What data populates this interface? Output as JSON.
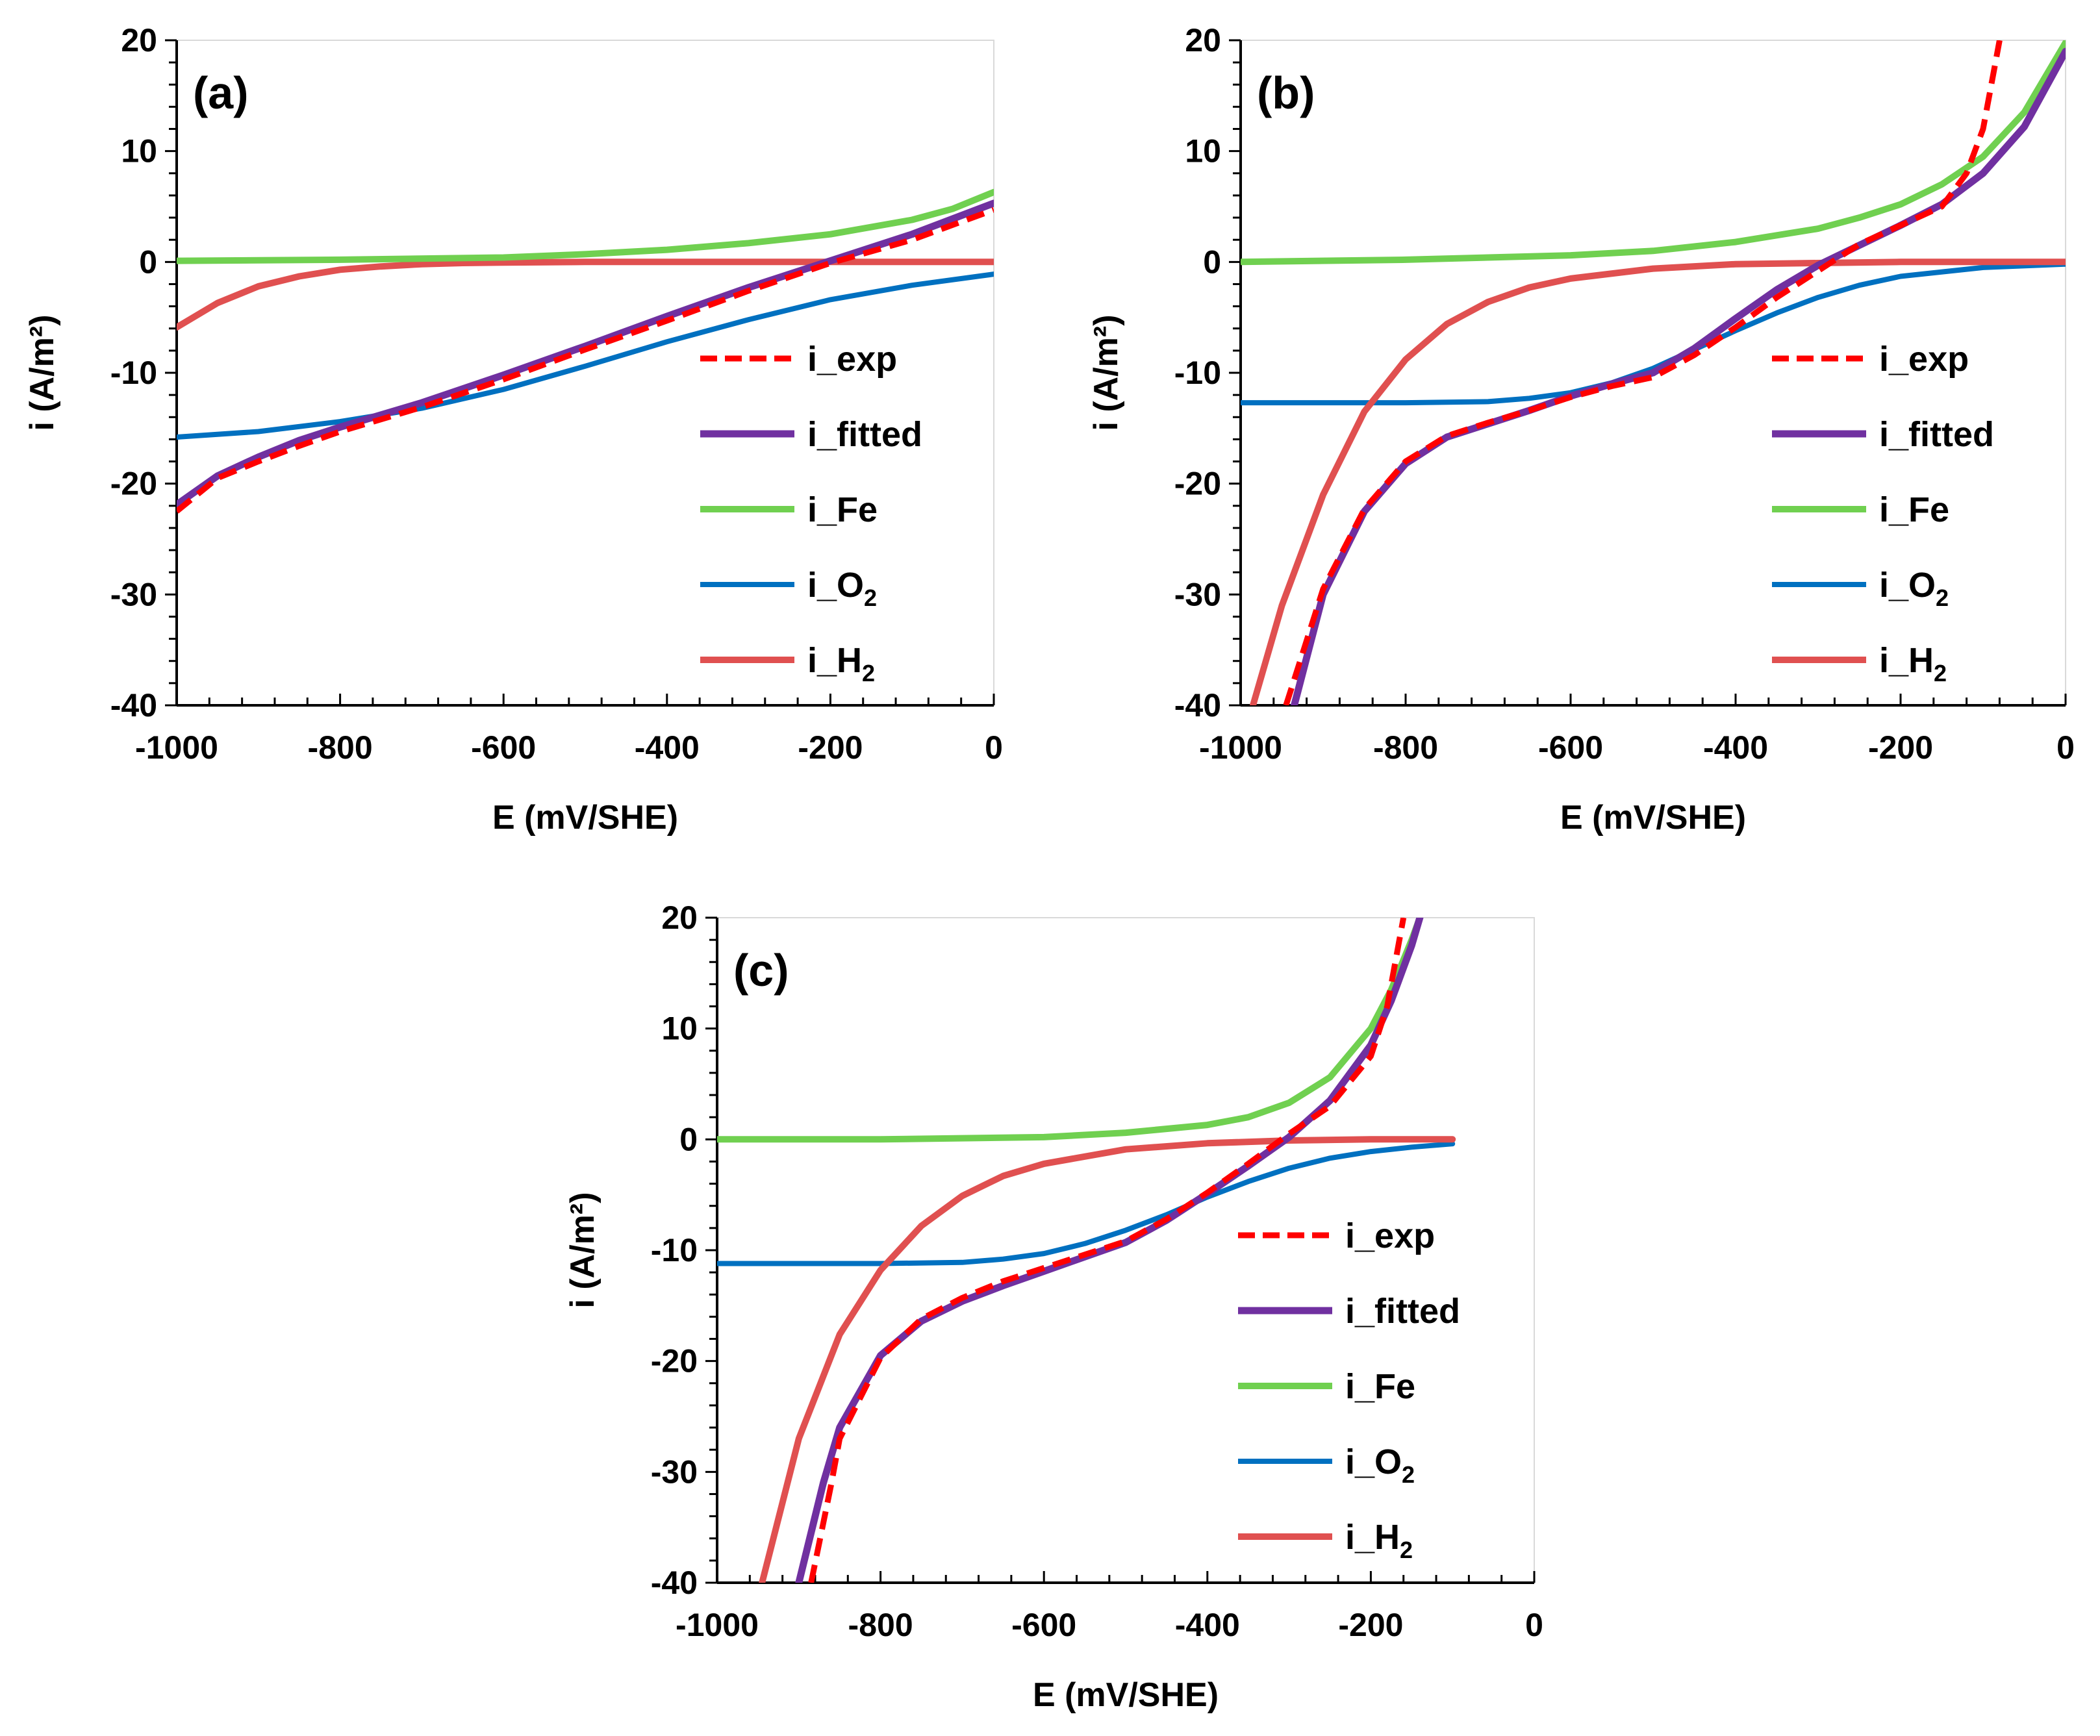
{
  "colors": {
    "i_exp": "#ff0000",
    "i_fitted": "#7030a0",
    "i_Fe": "#70d050",
    "i_O2": "#0070c0",
    "i_H2": "#e05050",
    "axis": "#000000"
  },
  "chart_data": [
    {
      "type": "line",
      "panel_label": "(a)",
      "xlabel": "E (mV/SHE)",
      "ylabel": "i (A/m²)",
      "xlim": [
        -1000,
        0
      ],
      "ylim": [
        -40,
        20
      ],
      "xticks": [
        "-1000",
        "-800",
        "-600",
        "-400",
        "-200",
        "0"
      ],
      "yticks": [
        "20",
        "10",
        "0",
        "-10",
        "-20",
        "-30",
        "-40"
      ],
      "legend_position": "center-right",
      "legend": [
        {
          "key": "i_exp",
          "label": "i_exp"
        },
        {
          "key": "i_fitted",
          "label": "i_fitted"
        },
        {
          "key": "i_Fe",
          "label": "i_Fe"
        },
        {
          "key": "i_O2",
          "label": "i_O",
          "sub": "2"
        },
        {
          "key": "i_H2",
          "label": "i_H",
          "sub": "2"
        }
      ],
      "series": [
        {
          "key": "i_O2",
          "x": [
            -1000,
            -900,
            -800,
            -700,
            -600,
            -500,
            -400,
            -300,
            -200,
            -100,
            0
          ],
          "y": [
            -15.8,
            -15.3,
            -14.4,
            -13.2,
            -11.5,
            -9.4,
            -7.2,
            -5.2,
            -3.4,
            -2.1,
            -1.1
          ]
        },
        {
          "key": "i_H2",
          "x": [
            -1000,
            -950,
            -900,
            -850,
            -800,
            -750,
            -700,
            -650,
            -600,
            -500,
            -400,
            -200,
            0
          ],
          "y": [
            -5.9,
            -3.7,
            -2.2,
            -1.3,
            -0.7,
            -0.4,
            -0.2,
            -0.1,
            -0.05,
            0,
            0,
            0,
            0
          ]
        },
        {
          "key": "i_Fe",
          "x": [
            -1000,
            -800,
            -600,
            -500,
            -400,
            -300,
            -200,
            -100,
            -50,
            0
          ],
          "y": [
            0.1,
            0.2,
            0.4,
            0.7,
            1.1,
            1.7,
            2.5,
            3.8,
            4.8,
            6.3
          ]
        },
        {
          "key": "i_fitted",
          "x": [
            -1000,
            -950,
            -900,
            -850,
            -800,
            -700,
            -600,
            -500,
            -400,
            -300,
            -200,
            -100,
            0
          ],
          "y": [
            -21.9,
            -19.3,
            -17.6,
            -16.1,
            -14.9,
            -12.7,
            -10.2,
            -7.6,
            -4.9,
            -2.3,
            0.1,
            2.5,
            5.3
          ]
        },
        {
          "key": "i_exp",
          "x": [
            -1000,
            -950,
            -900,
            -850,
            -800,
            -700,
            -600,
            -500,
            -400,
            -300,
            -200,
            -100,
            0
          ],
          "y": [
            -22.5,
            -19.5,
            -18.0,
            -16.6,
            -15.3,
            -13.1,
            -10.6,
            -7.9,
            -5.3,
            -2.6,
            -0.1,
            2.0,
            4.7
          ]
        }
      ]
    },
    {
      "type": "line",
      "panel_label": "(b)",
      "xlabel": "E (mV/SHE)",
      "ylabel": "i (A/m²)",
      "xlim": [
        -1000,
        0
      ],
      "ylim": [
        -40,
        20
      ],
      "xticks": [
        "-1000",
        "-800",
        "-600",
        "-400",
        "-200",
        "0"
      ],
      "yticks": [
        "20",
        "10",
        "0",
        "-10",
        "-20",
        "-30",
        "-40"
      ],
      "legend_position": "center-right",
      "legend": [
        {
          "key": "i_exp",
          "label": "i_exp"
        },
        {
          "key": "i_fitted",
          "label": "i_fitted"
        },
        {
          "key": "i_Fe",
          "label": "i_Fe"
        },
        {
          "key": "i_O2",
          "label": "i_O",
          "sub": "2"
        },
        {
          "key": "i_H2",
          "label": "i_H",
          "sub": "2"
        }
      ],
      "series": [
        {
          "key": "i_O2",
          "x": [
            -1000,
            -800,
            -700,
            -650,
            -600,
            -550,
            -500,
            -450,
            -400,
            -350,
            -300,
            -250,
            -200,
            -100,
            0
          ],
          "y": [
            -12.7,
            -12.7,
            -12.6,
            -12.3,
            -11.8,
            -10.9,
            -9.6,
            -7.9,
            -6.2,
            -4.6,
            -3.2,
            -2.1,
            -1.3,
            -0.5,
            -0.2
          ]
        },
        {
          "key": "i_H2",
          "x": [
            -985,
            -950,
            -900,
            -850,
            -800,
            -750,
            -700,
            -650,
            -600,
            -500,
            -400,
            -300,
            -200,
            -100,
            0
          ],
          "y": [
            -40,
            -31,
            -21,
            -13.5,
            -8.8,
            -5.6,
            -3.6,
            -2.3,
            -1.5,
            -0.6,
            -0.2,
            -0.1,
            0,
            0,
            0
          ]
        },
        {
          "key": "i_Fe",
          "x": [
            -1000,
            -800,
            -600,
            -500,
            -400,
            -300,
            -250,
            -200,
            -150,
            -100,
            -50,
            0
          ],
          "y": [
            0,
            0.2,
            0.6,
            1.0,
            1.8,
            3.0,
            4.0,
            5.2,
            7.0,
            9.5,
            13.5,
            19.8
          ]
        },
        {
          "key": "i_fitted",
          "x": [
            -935,
            -900,
            -850,
            -800,
            -750,
            -700,
            -650,
            -600,
            -550,
            -500,
            -450,
            -400,
            -350,
            -300,
            -250,
            -200,
            -150,
            -100,
            -50,
            0
          ],
          "y": [
            -40,
            -30,
            -22.5,
            -18.2,
            -15.8,
            -14.6,
            -13.4,
            -12.1,
            -11.0,
            -10.0,
            -7.8,
            -5.1,
            -2.5,
            -0.3,
            1.5,
            3.3,
            5.2,
            8.0,
            12.2,
            19.0
          ]
        },
        {
          "key": "i_exp",
          "x": [
            -945,
            -900,
            -850,
            -800,
            -750,
            -700,
            -650,
            -600,
            -550,
            -500,
            -450,
            -400,
            -350,
            -300,
            -250,
            -200,
            -150,
            -120,
            -100,
            -90,
            -80
          ],
          "y": [
            -40,
            -29.5,
            -22.3,
            -18.0,
            -15.7,
            -14.5,
            -13.4,
            -12.2,
            -11.2,
            -10.4,
            -8.4,
            -5.9,
            -3.2,
            -0.8,
            1.6,
            3.3,
            5.0,
            8.0,
            12.0,
            16.0,
            20.0
          ]
        }
      ]
    },
    {
      "type": "line",
      "panel_label": "(c)",
      "xlabel": "E (mV/SHE)",
      "ylabel": "i (A/m²)",
      "xlim": [
        -1000,
        0
      ],
      "ylim": [
        -40,
        20
      ],
      "xticks": [
        "-1000",
        "-800",
        "-600",
        "-400",
        "-200",
        "0"
      ],
      "yticks": [
        "20",
        "10",
        "0",
        "-10",
        "-20",
        "-30",
        "-40"
      ],
      "legend_position": "center-right",
      "legend": [
        {
          "key": "i_exp",
          "label": "i_exp"
        },
        {
          "key": "i_fitted",
          "label": "i_fitted"
        },
        {
          "key": "i_Fe",
          "label": "i_Fe"
        },
        {
          "key": "i_O2",
          "label": "i_O",
          "sub": "2"
        },
        {
          "key": "i_H2",
          "label": "i_H",
          "sub": "2"
        }
      ],
      "series": [
        {
          "key": "i_O2",
          "x": [
            -1000,
            -800,
            -700,
            -650,
            -600,
            -550,
            -500,
            -450,
            -400,
            -350,
            -300,
            -250,
            -200,
            -150,
            -100
          ],
          "y": [
            -11.2,
            -11.2,
            -11.1,
            -10.8,
            -10.3,
            -9.4,
            -8.2,
            -6.8,
            -5.2,
            -3.8,
            -2.6,
            -1.7,
            -1.1,
            -0.7,
            -0.4
          ]
        },
        {
          "key": "i_H2",
          "x": [
            -945,
            -900,
            -850,
            -800,
            -750,
            -700,
            -650,
            -600,
            -500,
            -400,
            -300,
            -200,
            -100
          ],
          "y": [
            -40,
            -27,
            -17.6,
            -11.8,
            -7.8,
            -5.1,
            -3.3,
            -2.2,
            -0.9,
            -0.35,
            -0.1,
            0,
            0
          ]
        },
        {
          "key": "i_Fe",
          "x": [
            -1000,
            -800,
            -600,
            -500,
            -400,
            -350,
            -300,
            -250,
            -200,
            -175,
            -150,
            -140
          ],
          "y": [
            0,
            0,
            0.2,
            0.6,
            1.3,
            2.0,
            3.3,
            5.6,
            10.0,
            13.5,
            18.0,
            20.0
          ]
        },
        {
          "key": "i_fitted",
          "x": [
            -900,
            -870,
            -850,
            -800,
            -750,
            -700,
            -650,
            -600,
            -550,
            -500,
            -450,
            -400,
            -350,
            -300,
            -250,
            -200,
            -175,
            -150,
            -140
          ],
          "y": [
            -40,
            -31,
            -26,
            -19.5,
            -16.4,
            -14.6,
            -13.2,
            -11.9,
            -10.6,
            -9.3,
            -7.3,
            -4.9,
            -2.4,
            0.2,
            3.5,
            8.5,
            12.5,
            17.5,
            20.0
          ]
        },
        {
          "key": "i_exp",
          "x": [
            -885,
            -860,
            -850,
            -800,
            -750,
            -700,
            -650,
            -600,
            -550,
            -500,
            -450,
            -400,
            -350,
            -300,
            -250,
            -200,
            -180,
            -165,
            -160
          ],
          "y": [
            -40,
            -31,
            -27,
            -19.7,
            -16.2,
            -14.3,
            -12.8,
            -11.6,
            -10.4,
            -9.2,
            -7.2,
            -4.8,
            -2.2,
            0.5,
            3.0,
            7.5,
            12.0,
            18.0,
            20.0
          ]
        }
      ]
    }
  ]
}
